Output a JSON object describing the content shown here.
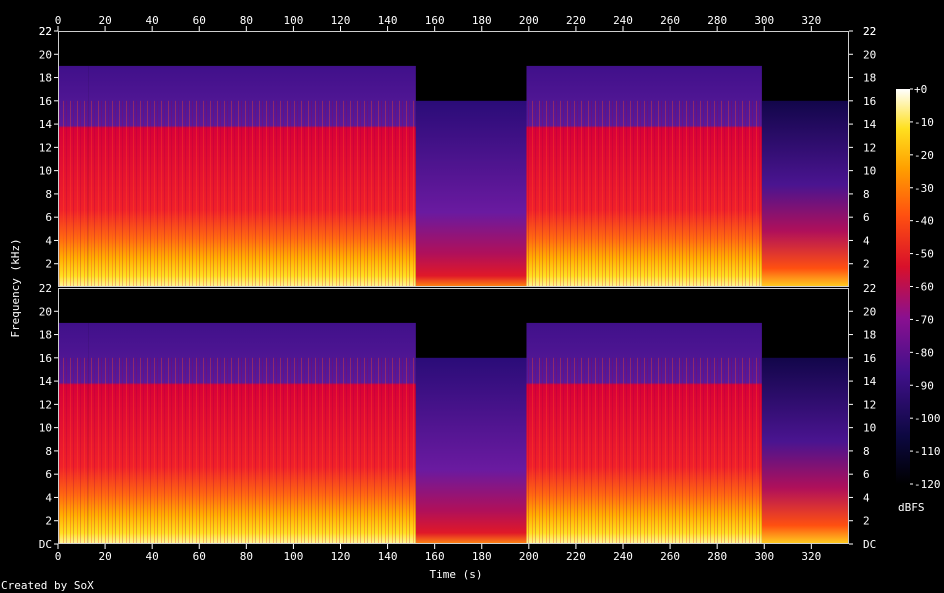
{
  "chart_data": {
    "type": "heatmap",
    "subtype": "spectrogram",
    "channels": 2,
    "xlabel": "Time (s)",
    "ylabel": "Frequency (kHz)",
    "x_ticks": [
      0,
      20,
      40,
      60,
      80,
      100,
      120,
      140,
      160,
      180,
      200,
      220,
      240,
      260,
      280,
      300,
      320
    ],
    "xlim": [
      0,
      336
    ],
    "y_ticks_top": [
      "2",
      "4",
      "6",
      "8",
      "10",
      "12",
      "14",
      "16",
      "18",
      "20",
      "22"
    ],
    "y_ticks_bottom": [
      "DC",
      "2",
      "4",
      "6",
      "8",
      "10",
      "12",
      "14",
      "16",
      "18",
      "20"
    ],
    "ylim_khz": [
      0,
      22
    ],
    "colorbar": {
      "label": "dBFS",
      "ticks": [
        "+0",
        "-10",
        "-20",
        "-30",
        "-40",
        "-50",
        "-60",
        "-70",
        "-80",
        "-90",
        "-100",
        "-110",
        "-120"
      ],
      "range": [
        -120,
        0
      ]
    },
    "regions": [
      {
        "t0": 0,
        "t1": 13,
        "cutoff_khz": 16,
        "hf_khz": 19,
        "level": "loud"
      },
      {
        "t0": 13,
        "t1": 152,
        "cutoff_khz": 16,
        "hf_khz": 19,
        "level": "loud"
      },
      {
        "t0": 152,
        "t1": 199,
        "cutoff_khz": 16,
        "hf_khz": 16,
        "level": "quiet"
      },
      {
        "t0": 199,
        "t1": 299,
        "cutoff_khz": 16,
        "hf_khz": 19,
        "level": "loud"
      },
      {
        "t0": 299,
        "t1": 336,
        "cutoff_khz": 14,
        "hf_khz": 16,
        "level": "fade"
      }
    ],
    "credit": "Created by SoX"
  }
}
